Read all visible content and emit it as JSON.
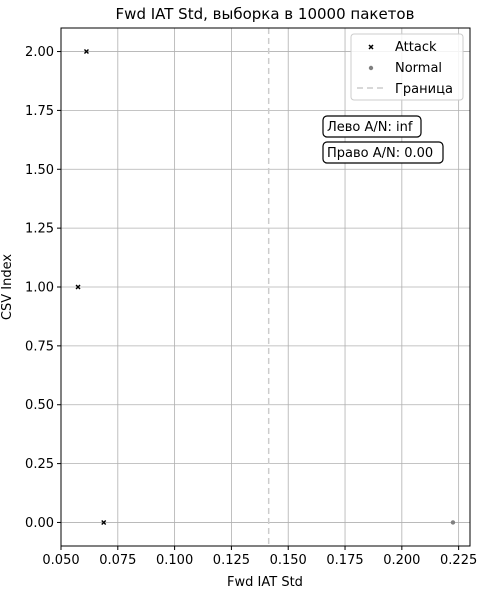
{
  "chart_data": {
    "type": "scatter",
    "title": "Fwd IAT Std, выборка в 10000 пакетов",
    "xlabel": "Fwd IAT Std",
    "ylabel": "CSV Index",
    "xlim": [
      0.05,
      0.23
    ],
    "ylim": [
      -0.1,
      2.1
    ],
    "x_ticks": [
      "0.050",
      "0.075",
      "0.100",
      "0.125",
      "0.150",
      "0.175",
      "0.200",
      "0.225"
    ],
    "y_ticks": [
      "0.00",
      "0.25",
      "0.50",
      "0.75",
      "1.00",
      "1.25",
      "1.50",
      "1.75",
      "2.00"
    ],
    "grid": true,
    "legend_position": "top-right",
    "boundary": {
      "name": "Граница",
      "x": 0.1414,
      "color": "#cccccc",
      "style": "dashed"
    },
    "series": [
      {
        "name": "Attack",
        "marker": "x",
        "color": "#000000",
        "points": [
          {
            "x": 0.0612,
            "y": 2.0
          },
          {
            "x": 0.0575,
            "y": 1.0
          },
          {
            "x": 0.0688,
            "y": 0.0
          }
        ]
      },
      {
        "name": "Normal",
        "marker": "o",
        "color": "#808080",
        "points": [
          {
            "x": 0.2225,
            "y": 0.0
          }
        ]
      }
    ],
    "annotations": [
      "Лево A/N: inf",
      "Право A/N: 0.00"
    ]
  }
}
